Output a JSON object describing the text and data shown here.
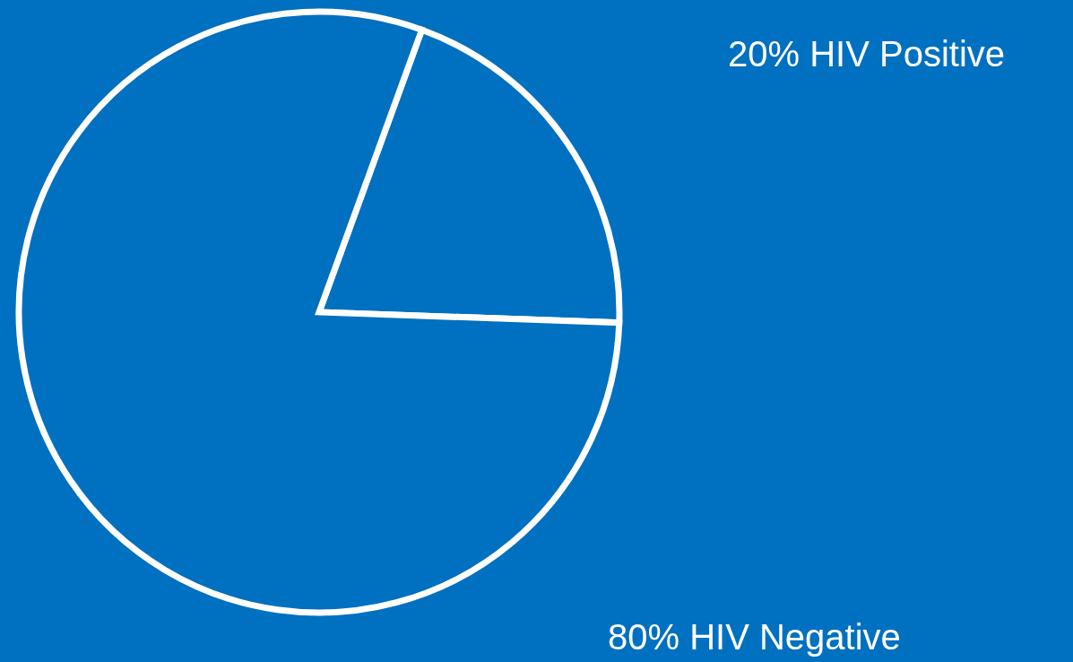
{
  "chart_data": {
    "type": "pie",
    "categories": [
      "HIV Positive",
      "HIV Negative"
    ],
    "values": [
      20,
      80
    ],
    "value_labels": [
      "20%",
      "80%"
    ],
    "colors": [
      "#0070c0",
      "#0070c0"
    ]
  }
}
